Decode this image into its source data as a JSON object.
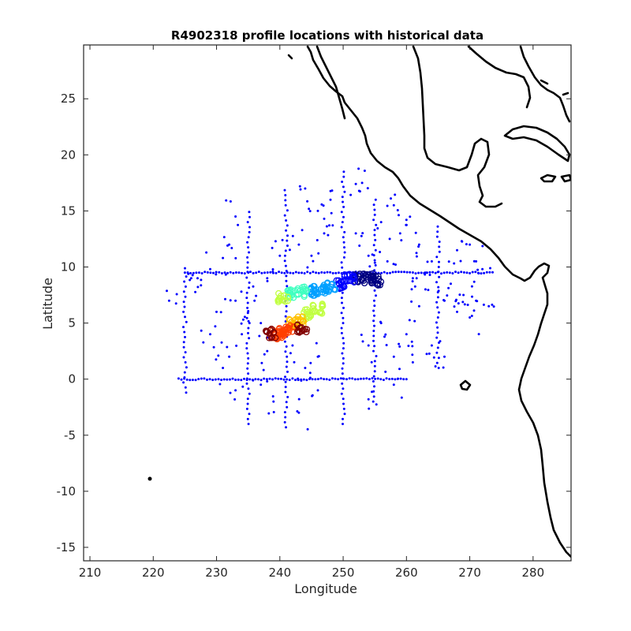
{
  "chart_data": {
    "type": "scatter",
    "title": "R4902318 profile locations with historical data",
    "xlabel": "Longitude",
    "ylabel": "Latitude",
    "xlim": [
      209,
      286
    ],
    "ylim": [
      -16.2,
      29.8
    ],
    "xticks": [
      210,
      220,
      230,
      240,
      250,
      260,
      270,
      280
    ],
    "yticks": [
      -15,
      -10,
      -5,
      0,
      5,
      10,
      15,
      20,
      25
    ],
    "grid": false,
    "legend": "none",
    "colors": {
      "historical": "#0000ff",
      "coastline": "#000000",
      "track_colormap": [
        "#000080",
        "#0000ff",
        "#00a0ff",
        "#40ffc0",
        "#c0ff40",
        "#ffc000",
        "#ff4000",
        "#800000"
      ]
    },
    "historical_points": {
      "color": "#0000ff",
      "lines": [
        {
          "fixed": "lat",
          "value": 9.5,
          "from": 225,
          "to": 274
        },
        {
          "fixed": "lat",
          "value": 0,
          "from": 224,
          "to": 260
        },
        {
          "fixed": "lon",
          "value": 225,
          "from": -1.2,
          "to": 9.5
        },
        {
          "fixed": "lon",
          "value": 235,
          "from": -4,
          "to": 15
        },
        {
          "fixed": "lon",
          "value": 241,
          "from": -4.3,
          "to": 17
        },
        {
          "fixed": "lon",
          "value": 250,
          "from": -4,
          "to": 18.5
        },
        {
          "fixed": "lon",
          "value": 255,
          "from": -2,
          "to": 16
        },
        {
          "fixed": "lon",
          "value": 265,
          "from": 1,
          "to": 14
        }
      ],
      "scattered": [
        [
          222.5,
          7
        ],
        [
          226,
          9
        ],
        [
          227,
          9
        ],
        [
          233,
          14.5
        ],
        [
          232,
          12
        ],
        [
          231,
          10.8
        ],
        [
          229,
          9.8
        ],
        [
          244,
          17
        ],
        [
          246,
          15
        ],
        [
          247,
          14.3
        ],
        [
          248,
          16
        ],
        [
          252,
          17.4
        ],
        [
          253,
          17.5
        ],
        [
          256,
          14
        ],
        [
          258,
          15.5
        ],
        [
          259,
          13
        ],
        [
          260,
          14.2
        ],
        [
          262,
          12
        ],
        [
          264,
          10.5
        ],
        [
          268,
          11.5
        ],
        [
          270,
          12
        ],
        [
          271,
          10.5
        ],
        [
          272,
          9.8
        ],
        [
          266,
          7
        ],
        [
          268,
          6
        ],
        [
          270,
          5.5
        ],
        [
          262,
          6.5
        ],
        [
          260,
          4
        ],
        [
          258,
          2
        ],
        [
          256,
          5
        ],
        [
          254,
          3
        ],
        [
          246,
          2
        ],
        [
          244,
          1
        ],
        [
          242,
          3
        ],
        [
          238,
          2.5
        ],
        [
          237,
          5
        ],
        [
          236,
          7
        ],
        [
          238,
          9
        ],
        [
          240,
          11
        ],
        [
          243,
          12
        ],
        [
          245,
          11
        ],
        [
          247,
          13
        ],
        [
          252,
          13
        ],
        [
          254,
          11
        ],
        [
          257,
          10.5
        ],
        [
          261,
          9
        ],
        [
          263,
          8
        ],
        [
          267,
          8.5
        ],
        [
          269,
          7.5
        ],
        [
          271,
          7
        ],
        [
          273,
          6.5
        ],
        [
          264,
          3
        ],
        [
          266,
          2
        ],
        [
          261,
          1.5
        ],
        [
          258,
          -0.5
        ],
        [
          254,
          -1.8
        ],
        [
          246,
          -1
        ],
        [
          243,
          -3
        ],
        [
          239,
          -2
        ],
        [
          237,
          -0.5
        ],
        [
          229,
          4
        ],
        [
          230,
          6
        ],
        [
          232,
          2
        ],
        [
          233,
          -1
        ],
        [
          231,
          1
        ],
        [
          234,
          4
        ],
        [
          233,
          7
        ]
      ]
    },
    "float_track": {
      "color_by": "cycle",
      "points": [
        [
          255.2,
          8.8
        ],
        [
          254.0,
          9.0
        ],
        [
          252.5,
          9.1
        ],
        [
          251.0,
          9.0
        ],
        [
          249.5,
          8.5
        ],
        [
          248.0,
          8.2
        ],
        [
          246.5,
          8.0
        ],
        [
          245.0,
          7.9
        ],
        [
          243.5,
          7.8
        ],
        [
          242.0,
          7.6
        ],
        [
          240.5,
          7.3
        ],
        [
          246.0,
          6.3
        ],
        [
          244.5,
          5.8
        ],
        [
          243.0,
          5.3
        ],
        [
          242.0,
          4.9
        ],
        [
          241.5,
          4.5
        ],
        [
          240.5,
          4.2
        ],
        [
          239.5,
          4.0
        ],
        [
          238.5,
          4.1
        ],
        [
          243.5,
          4.6
        ]
      ]
    },
    "annotations": [
      {
        "type": "island",
        "lon": 220.1,
        "lat": -8.8
      },
      {
        "type": "island",
        "lon": 269.2,
        "lat": -0.6
      }
    ]
  }
}
